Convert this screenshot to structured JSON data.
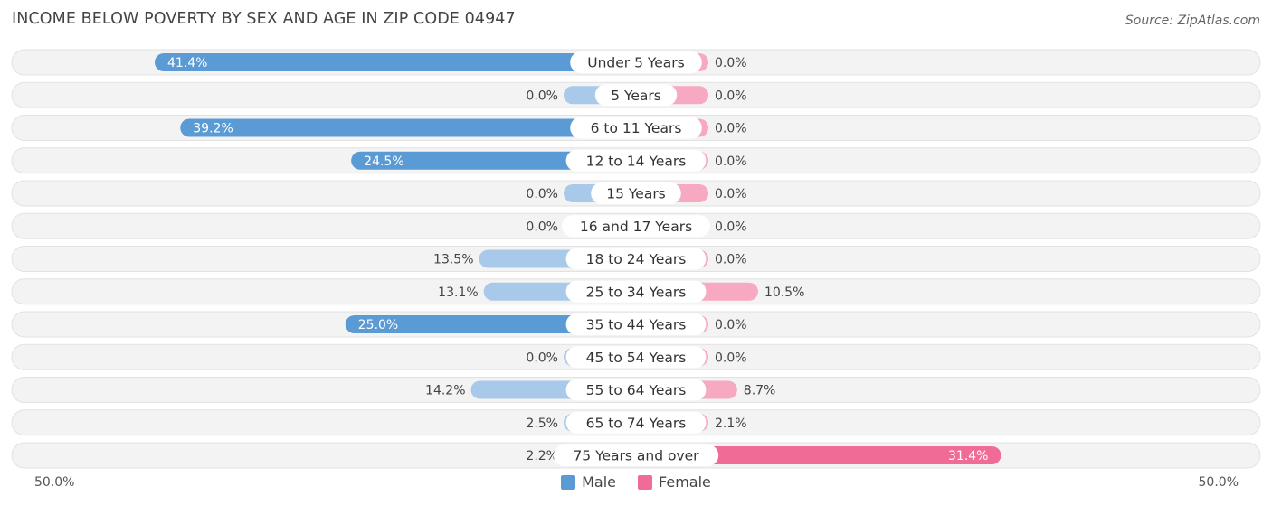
{
  "header": {
    "title": "INCOME BELOW POVERTY BY SEX AND AGE IN ZIP CODE 04947",
    "source": "Source: ZipAtlas.com"
  },
  "axis": {
    "left_label": "50.0%",
    "right_label": "50.0%"
  },
  "legend": {
    "male_label": "Male",
    "female_label": "Female"
  },
  "colors": {
    "male_strong": "#5b9bd5",
    "male_light": "#a9c9ea",
    "female_strong": "#f06b96",
    "female_light": "#f6a9c1",
    "row_bg": "#f0f0f0"
  },
  "chart_data": {
    "type": "bar",
    "orientation": "horizontal-diverging",
    "categories": [
      "Under 5 Years",
      "5 Years",
      "6 to 11 Years",
      "12 to 14 Years",
      "15 Years",
      "16 and 17 Years",
      "18 to 24 Years",
      "25 to 34 Years",
      "35 to 44 Years",
      "45 to 54 Years",
      "55 to 64 Years",
      "65 to 74 Years",
      "75 Years and over"
    ],
    "series": [
      {
        "name": "Male",
        "values": [
          41.4,
          0.0,
          39.2,
          24.5,
          0.0,
          0.0,
          13.5,
          13.1,
          25.0,
          0.0,
          14.2,
          2.5,
          2.2
        ]
      },
      {
        "name": "Female",
        "values": [
          0.0,
          0.0,
          0.0,
          0.0,
          0.0,
          0.0,
          0.0,
          10.5,
          0.0,
          0.0,
          8.7,
          2.1,
          31.4
        ]
      }
    ],
    "value_labels": {
      "Male": [
        "41.4%",
        "0.0%",
        "39.2%",
        "24.5%",
        "0.0%",
        "0.0%",
        "13.5%",
        "13.1%",
        "25.0%",
        "0.0%",
        "14.2%",
        "2.5%",
        "2.2%"
      ],
      "Female": [
        "0.0%",
        "0.0%",
        "0.0%",
        "0.0%",
        "0.0%",
        "0.0%",
        "0.0%",
        "10.5%",
        "0.0%",
        "0.0%",
        "8.7%",
        "2.1%",
        "31.4%"
      ]
    },
    "xlim": [
      -50,
      50
    ],
    "legend_position": "bottom-center"
  }
}
